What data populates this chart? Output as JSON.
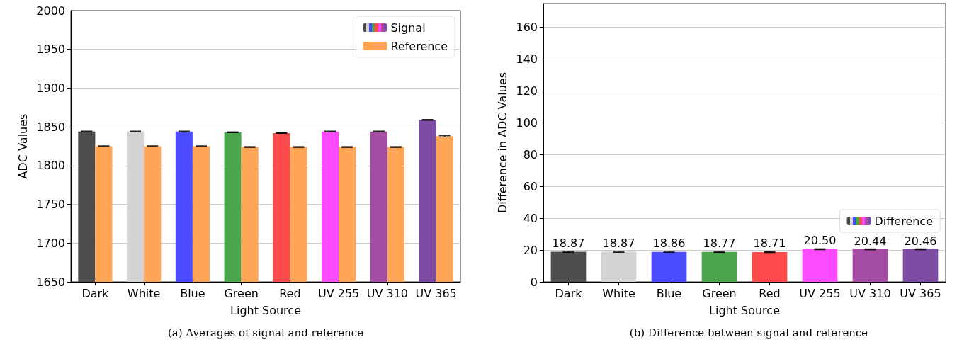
{
  "chart_data": [
    {
      "type": "bar",
      "title": "(a) Averages of signal and reference",
      "xlabel": "Light Source",
      "ylabel": "ADC Values",
      "categories": [
        "Dark",
        "White",
        "Blue",
        "Green",
        "Red",
        "UV 255",
        "UV 310",
        "UV 365"
      ],
      "series": [
        {
          "name": "Signal",
          "colors": [
            "#4d4d4d",
            "#d3d3d3",
            "#4b4bff",
            "#4aa64a",
            "#ff4b4b",
            "#ff4bff",
            "#a54ca5",
            "#7f4ca5"
          ],
          "values": [
            1844,
            1844,
            1844,
            1843,
            1842,
            1844,
            1844,
            1859
          ],
          "errors": [
            0.5,
            0.5,
            0.5,
            0.5,
            0.5,
            0.5,
            0.5,
            0.5
          ]
        },
        {
          "name": "Reference",
          "color": "#ffa556",
          "values": [
            1825,
            1825,
            1825,
            1824,
            1824,
            1824,
            1824,
            1838
          ],
          "errors": [
            0.5,
            0.5,
            0.5,
            0.5,
            0.5,
            0.5,
            0.5,
            1
          ]
        }
      ],
      "ylim": [
        1650,
        2000
      ],
      "yticks": [
        1650,
        1700,
        1750,
        1800,
        1850,
        1900,
        1950,
        2000
      ],
      "grid": "y",
      "legend": "top right"
    },
    {
      "type": "bar",
      "title": "(b) Difference between signal and reference",
      "xlabel": "Light Source",
      "ylabel": "Difference in ADC Values",
      "categories": [
        "Dark",
        "White",
        "Blue",
        "Green",
        "Red",
        "UV 255",
        "UV 310",
        "UV 365"
      ],
      "series": [
        {
          "name": "Difference",
          "colors": [
            "#4d4d4d",
            "#d3d3d3",
            "#4b4bff",
            "#4aa64a",
            "#ff4b4b",
            "#ff4bff",
            "#a54ca5",
            "#7f4ca5"
          ],
          "values": [
            18.87,
            18.87,
            18.86,
            18.77,
            18.71,
            20.5,
            20.44,
            20.46
          ],
          "errors": [
            0.3,
            0.3,
            0.3,
            0.3,
            0.3,
            0.3,
            0.3,
            0.3
          ],
          "value_labels": [
            "18.87",
            "18.87",
            "18.86",
            "18.77",
            "18.71",
            "20.50",
            "20.44",
            "20.46"
          ]
        }
      ],
      "ylim": [
        0,
        175
      ],
      "yticks": [
        0,
        20,
        40,
        60,
        80,
        100,
        120,
        140,
        160
      ],
      "grid": "y",
      "legend": "bottom right"
    }
  ]
}
